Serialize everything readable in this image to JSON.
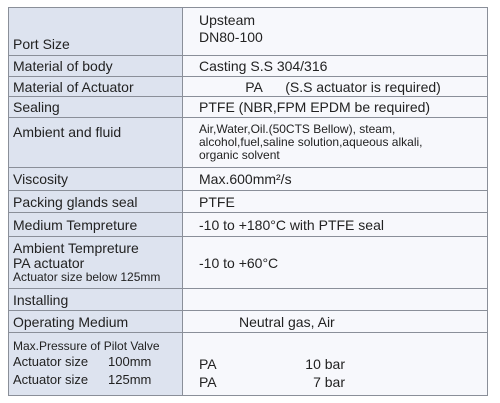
{
  "rows": [
    {
      "label": "Port Size",
      "value": [
        "Upsteam",
        "DN80-100"
      ]
    },
    {
      "label": "Material of body",
      "value": "Casting S.S 304/316"
    },
    {
      "label": "Material of Actuator",
      "value": [
        "PA",
        "(S.S actuator is required)"
      ]
    },
    {
      "label": "Sealing",
      "value": "PTFE (NBR,FPM EPDM be required)"
    },
    {
      "label": "Ambient and fluid",
      "value": [
        "Air,Water,Oil.(50CTS Bellow), steam,",
        "alcohol,fuel,saline solution,aqueous alkali,",
        "organic solvent"
      ]
    },
    {
      "label": "Viscosity",
      "value": "Max.600mm²/s"
    },
    {
      "label": "Packing glands seal",
      "value": "PTFE"
    },
    {
      "label": "Medium Tempreture",
      "value": "-10 to +180°C with PTFE seal"
    },
    {
      "label": [
        "Ambient Tempreture",
        "PA actuator",
        "Actuator size below 125mm"
      ],
      "value": "-10 to +60°C"
    },
    {
      "label": "Installing"
    },
    {
      "label": "Operating Medium",
      "value": "Neutral gas, Air"
    },
    {
      "label": "Max.Pressure of Pilot Valve",
      "sizes": [
        {
          "label": "Actuator size",
          "size": "100mm",
          "actuator": "PA",
          "pressure": "10 bar"
        },
        {
          "label": "Actuator size",
          "size": "125mm",
          "actuator": "PA",
          "pressure": "7 bar"
        }
      ]
    }
  ]
}
